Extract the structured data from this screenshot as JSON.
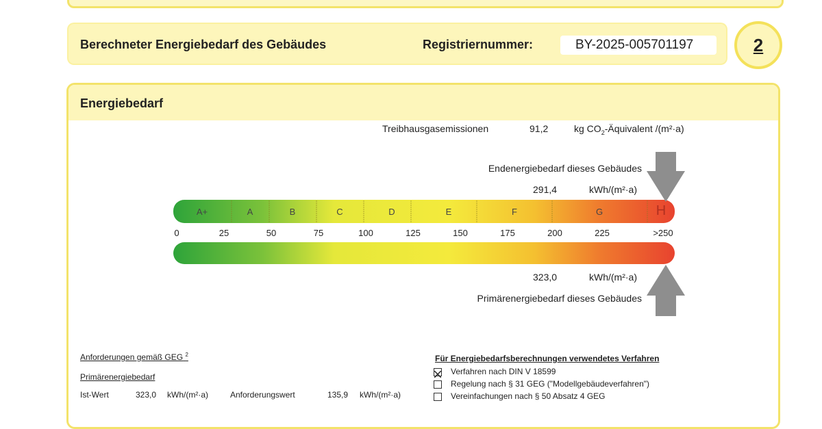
{
  "header": {
    "title": "Berechneter Energiebedarf des Gebäudes",
    "registration_label": "Registriernummer:",
    "registration_number": "BY-2025-005701197",
    "page_number": "2"
  },
  "section": {
    "title": "Energiebedarf",
    "emissions": {
      "label": "Treibhausgasemissionen",
      "value": "91,2",
      "unit_prefix": "kg CO",
      "unit_sub": "2",
      "unit_suffix": "-Äquivalent /(m²·a)"
    },
    "end_energy": {
      "label": "Endenergiebedarf dieses Gebäudes",
      "value": "291,4",
      "unit": "kWh/(m²·a)"
    },
    "classes": [
      "A+",
      "A",
      "B",
      "C",
      "D",
      "E",
      "F",
      "G",
      "H"
    ],
    "scale": [
      "0",
      "25",
      "50",
      "75",
      "100",
      "125",
      "150",
      "175",
      "200",
      "225",
      ">250"
    ],
    "primary_energy": {
      "value": "323,0",
      "unit": "kWh/(m²·a)",
      "label": "Primärenergiebedarf dieses Gebäudes"
    }
  },
  "requirements": {
    "title": "Anforderungen gemäß GEG",
    "title_sup": "2",
    "subtitle": "Primärenergiebedarf",
    "actual_label": "Ist-Wert",
    "actual_value": "323,0",
    "actual_unit": "kWh/(m²·a)",
    "required_label": "Anforderungswert",
    "required_value": "135,9",
    "required_unit": "kWh/(m²·a)"
  },
  "method": {
    "title": "Für Energiebedarfsberechnungen verwendetes Verfahren",
    "options": [
      {
        "label": "Verfahren nach DIN V 18599",
        "checked": true
      },
      {
        "label": "Regelung nach § 31 GEG (\"Modellgebäudeverfahren\")",
        "checked": false
      },
      {
        "label": "Vereinfachungen nach § 50 Absatz 4 GEG",
        "checked": false
      }
    ]
  }
}
